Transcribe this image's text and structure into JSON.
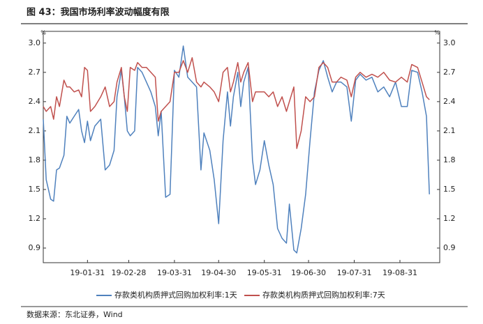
{
  "chart_data": {
    "type": "line",
    "title": "图 43：我国市场利率波动幅度有限",
    "source": "数据来源：东北证券，Wind",
    "ylabel": "%",
    "y2label": "%",
    "x": [
      "19-01-01",
      "19-01-03",
      "19-01-06",
      "19-01-08",
      "19-01-10",
      "19-01-12",
      "19-01-15",
      "19-01-17",
      "19-01-19",
      "19-01-22",
      "19-01-25",
      "19-01-27",
      "19-01-29",
      "19-01-31",
      "19-02-02",
      "19-02-05",
      "19-02-09",
      "19-02-12",
      "19-02-15",
      "19-02-18",
      "19-02-20",
      "19-02-23",
      "19-02-25",
      "19-02-27",
      "19-03-01",
      "19-03-04",
      "19-03-06",
      "19-03-09",
      "19-03-12",
      "19-03-15",
      "19-03-18",
      "19-03-20",
      "19-03-22",
      "19-03-25",
      "19-03-28",
      "19-03-31",
      "19-04-03",
      "19-04-06",
      "19-04-09",
      "19-04-12",
      "19-04-15",
      "19-04-18",
      "19-04-20",
      "19-04-24",
      "19-04-27",
      "19-04-30",
      "19-05-03",
      "19-05-06",
      "19-05-08",
      "19-05-10",
      "19-05-13",
      "19-05-15",
      "19-05-17",
      "19-05-20",
      "19-05-23",
      "19-05-25",
      "19-05-28",
      "19-05-31",
      "19-06-03",
      "19-06-06",
      "19-06-09",
      "19-06-12",
      "19-06-15",
      "19-06-17",
      "19-06-20",
      "19-06-22",
      "19-06-25",
      "19-06-28",
      "19-07-01",
      "19-07-04",
      "19-07-07",
      "19-07-10",
      "19-07-13",
      "19-07-16",
      "19-07-19",
      "19-07-22",
      "19-07-26",
      "19-07-29",
      "19-08-01",
      "19-08-04",
      "19-08-08",
      "19-08-12",
      "19-08-16",
      "19-08-20",
      "19-08-24",
      "19-08-28",
      "19-09-01",
      "19-09-05",
      "19-09-08",
      "19-09-12",
      "19-09-15",
      "19-09-18",
      "19-09-20"
    ],
    "series": [
      {
        "name": "存款类机构质押式回购加权利率:1天",
        "color": "#4f81bd",
        "values": [
          2.22,
          1.6,
          1.4,
          1.38,
          1.7,
          1.72,
          1.85,
          2.25,
          2.18,
          2.25,
          2.32,
          2.1,
          1.98,
          2.2,
          2.0,
          2.15,
          2.22,
          1.7,
          1.75,
          1.9,
          2.45,
          2.72,
          2.45,
          2.1,
          2.05,
          2.1,
          2.75,
          2.7,
          2.6,
          2.5,
          2.35,
          2.05,
          2.3,
          1.42,
          1.45,
          2.72,
          2.65,
          2.97,
          2.65,
          2.6,
          2.55,
          1.7,
          2.08,
          1.9,
          1.6,
          1.15,
          2.0,
          2.5,
          2.15,
          2.45,
          2.7,
          2.35,
          2.6,
          2.75,
          1.8,
          1.55,
          1.7,
          2.0,
          1.75,
          1.55,
          1.1,
          1.0,
          0.95,
          1.35,
          0.88,
          0.85,
          1.1,
          1.45,
          2.0,
          2.5,
          2.72,
          2.82,
          2.65,
          2.5,
          2.6,
          2.6,
          2.55,
          2.2,
          2.62,
          2.68,
          2.62,
          2.65,
          2.5,
          2.55,
          2.45,
          2.6,
          2.35,
          2.35,
          2.72,
          2.7,
          2.5,
          2.25,
          1.45
        ]
      },
      {
        "name": "存款类机构质押式回购加权利率:7天",
        "color": "#c0504d",
        "values": [
          2.35,
          2.3,
          2.35,
          2.22,
          2.45,
          2.35,
          2.62,
          2.55,
          2.55,
          2.5,
          2.52,
          2.45,
          2.75,
          2.72,
          2.3,
          2.35,
          2.45,
          2.55,
          2.35,
          2.4,
          2.6,
          2.75,
          2.45,
          2.3,
          2.75,
          2.72,
          2.8,
          2.75,
          2.75,
          2.7,
          2.65,
          2.2,
          2.3,
          2.35,
          2.4,
          2.7,
          2.7,
          2.82,
          2.7,
          2.85,
          2.6,
          2.55,
          2.6,
          2.55,
          2.5,
          2.4,
          2.7,
          2.75,
          2.5,
          2.6,
          2.8,
          2.6,
          2.7,
          2.8,
          2.4,
          2.5,
          2.5,
          2.5,
          2.45,
          2.5,
          2.35,
          2.45,
          2.3,
          2.4,
          2.55,
          1.92,
          2.1,
          2.45,
          2.4,
          2.45,
          2.75,
          2.8,
          2.75,
          2.6,
          2.6,
          2.65,
          2.62,
          2.45,
          2.65,
          2.7,
          2.65,
          2.68,
          2.65,
          2.7,
          2.62,
          2.6,
          2.65,
          2.6,
          2.78,
          2.75,
          2.6,
          2.45,
          2.42
        ]
      }
    ],
    "xlim": [
      "19-01-01",
      "19-09-27"
    ],
    "xticks": [
      "19-01-31",
      "19-02-28",
      "19-03-31",
      "19-04-30",
      "19-05-31",
      "19-06-30",
      "19-07-31",
      "19-08-31"
    ],
    "ylim": [
      0.75,
      3.12
    ],
    "yticks": [
      {
        "value": 3,
        "label": "3.0"
      },
      2.7,
      2.4,
      2.1,
      1.8,
      1.5,
      1.2,
      0.9
    ],
    "y2lim": [
      0.75,
      3.12
    ],
    "y2ticks": [
      {
        "value": 3,
        "label": "3.0"
      },
      2.7,
      2.4,
      2.1,
      1.8,
      1.5,
      1.2,
      0.9
    ],
    "legend": "bottom"
  }
}
